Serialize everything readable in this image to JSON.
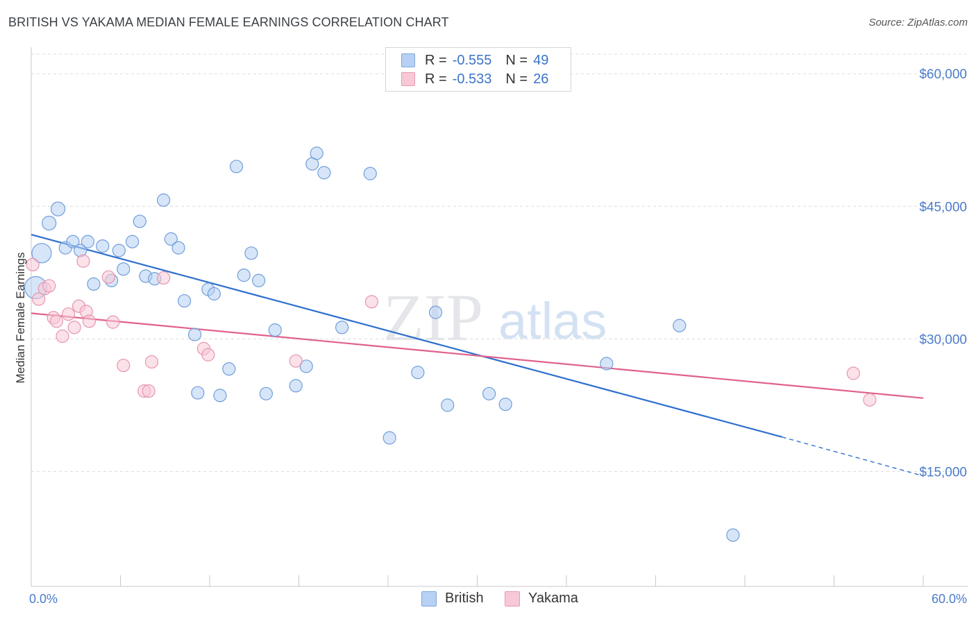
{
  "title": "BRITISH VS YAKAMA MEDIAN FEMALE EARNINGS CORRELATION CHART",
  "source": "Source: ZipAtlas.com",
  "watermark": {
    "zip": "ZIP",
    "atlas": "atlas"
  },
  "legend": {
    "rows": [
      {
        "r_label": "R =",
        "r_value": "-0.555",
        "n_label": "N =",
        "n_value": "49"
      },
      {
        "r_label": "R =",
        "r_value": "-0.533",
        "n_label": "N =",
        "n_value": "26"
      }
    ]
  },
  "colors": {
    "british_fill": "#b7d0f3",
    "british_stroke": "#6f9edb",
    "british_line": "#2f6fce",
    "yakama_fill": "#f8c8d6",
    "yakama_stroke": "#e695b0",
    "yakama_line": "#e0608a",
    "tick_text": "#4a7cc9",
    "grid": "#dcdcdc"
  },
  "chart_data": {
    "type": "scatter",
    "title": "BRITISH VS YAKAMA MEDIAN FEMALE EARNINGS CORRELATION CHART",
    "xlabel": "",
    "ylabel": "Median Female Earnings",
    "xlim": [
      0,
      60
    ],
    "ylim": [
      2000,
      63000
    ],
    "x_tick_labels": [
      "0.0%",
      "60.0%"
    ],
    "y_ticks": [
      15000,
      30000,
      45000,
      60000
    ],
    "y_tick_labels": [
      "$15,000",
      "$30,000",
      "$45,000",
      "$60,000"
    ],
    "grid": true,
    "legend_position": "top-center",
    "series": [
      {
        "name": "British",
        "r": -0.555,
        "n": 49,
        "trend": {
          "x0": 0,
          "y0": 41800,
          "x1": 50.5,
          "y1": 18900,
          "dash_x1": 60,
          "dash_y1": 14500
        },
        "points": [
          {
            "x": 0.3,
            "y": 35800,
            "s": 16
          },
          {
            "x": 0.7,
            "y": 39700,
            "s": 14
          },
          {
            "x": 1.2,
            "y": 43100,
            "s": 10
          },
          {
            "x": 1.8,
            "y": 44700,
            "s": 10
          },
          {
            "x": 2.3,
            "y": 40300,
            "s": 9
          },
          {
            "x": 2.8,
            "y": 41000,
            "s": 9
          },
          {
            "x": 3.3,
            "y": 40000,
            "s": 9
          },
          {
            "x": 3.8,
            "y": 41000,
            "s": 9
          },
          {
            "x": 4.2,
            "y": 36200,
            "s": 9
          },
          {
            "x": 4.8,
            "y": 40500,
            "s": 9
          },
          {
            "x": 5.4,
            "y": 36600,
            "s": 9
          },
          {
            "x": 5.9,
            "y": 40000,
            "s": 9
          },
          {
            "x": 6.2,
            "y": 37900,
            "s": 9
          },
          {
            "x": 6.8,
            "y": 41000,
            "s": 9
          },
          {
            "x": 7.3,
            "y": 43300,
            "s": 9
          },
          {
            "x": 7.7,
            "y": 37100,
            "s": 9
          },
          {
            "x": 8.3,
            "y": 36800,
            "s": 9
          },
          {
            "x": 8.9,
            "y": 45700,
            "s": 9
          },
          {
            "x": 9.4,
            "y": 41300,
            "s": 9
          },
          {
            "x": 9.9,
            "y": 40300,
            "s": 9
          },
          {
            "x": 10.3,
            "y": 34300,
            "s": 9
          },
          {
            "x": 11.0,
            "y": 30500,
            "s": 9
          },
          {
            "x": 11.2,
            "y": 23900,
            "s": 9
          },
          {
            "x": 11.9,
            "y": 35600,
            "s": 9
          },
          {
            "x": 12.3,
            "y": 35100,
            "s": 9
          },
          {
            "x": 12.7,
            "y": 23600,
            "s": 9
          },
          {
            "x": 13.3,
            "y": 26600,
            "s": 9
          },
          {
            "x": 13.8,
            "y": 49500,
            "s": 9
          },
          {
            "x": 14.3,
            "y": 37200,
            "s": 9
          },
          {
            "x": 14.8,
            "y": 39700,
            "s": 9
          },
          {
            "x": 15.3,
            "y": 36600,
            "s": 9
          },
          {
            "x": 15.8,
            "y": 23800,
            "s": 9
          },
          {
            "x": 16.4,
            "y": 31000,
            "s": 9
          },
          {
            "x": 17.8,
            "y": 24700,
            "s": 9
          },
          {
            "x": 18.5,
            "y": 26900,
            "s": 9
          },
          {
            "x": 18.9,
            "y": 49800,
            "s": 9
          },
          {
            "x": 19.2,
            "y": 51000,
            "s": 9
          },
          {
            "x": 19.7,
            "y": 48800,
            "s": 9
          },
          {
            "x": 20.9,
            "y": 31300,
            "s": 9
          },
          {
            "x": 22.8,
            "y": 48700,
            "s": 9
          },
          {
            "x": 24.1,
            "y": 18800,
            "s": 9
          },
          {
            "x": 26.0,
            "y": 26200,
            "s": 9
          },
          {
            "x": 27.2,
            "y": 33000,
            "s": 9
          },
          {
            "x": 28.0,
            "y": 22500,
            "s": 9
          },
          {
            "x": 30.8,
            "y": 23800,
            "s": 9
          },
          {
            "x": 31.9,
            "y": 22600,
            "s": 9
          },
          {
            "x": 38.7,
            "y": 27200,
            "s": 9
          },
          {
            "x": 43.6,
            "y": 31500,
            "s": 9
          },
          {
            "x": 47.2,
            "y": 7800,
            "s": 9
          }
        ]
      },
      {
        "name": "Yakama",
        "r": -0.533,
        "n": 26,
        "trend": {
          "x0": 0,
          "y0": 32900,
          "x1": 60,
          "y1": 23300
        },
        "points": [
          {
            "x": 0.1,
            "y": 38400,
            "s": 9
          },
          {
            "x": 0.5,
            "y": 34500,
            "s": 9
          },
          {
            "x": 0.9,
            "y": 35700,
            "s": 9
          },
          {
            "x": 1.2,
            "y": 36000,
            "s": 9
          },
          {
            "x": 1.5,
            "y": 32400,
            "s": 9
          },
          {
            "x": 1.7,
            "y": 32000,
            "s": 9
          },
          {
            "x": 2.1,
            "y": 30300,
            "s": 9
          },
          {
            "x": 2.5,
            "y": 32800,
            "s": 9
          },
          {
            "x": 2.9,
            "y": 31300,
            "s": 9
          },
          {
            "x": 3.2,
            "y": 33700,
            "s": 9
          },
          {
            "x": 3.5,
            "y": 38800,
            "s": 9
          },
          {
            "x": 3.7,
            "y": 33100,
            "s": 9
          },
          {
            "x": 3.9,
            "y": 32000,
            "s": 9
          },
          {
            "x": 5.2,
            "y": 37000,
            "s": 9
          },
          {
            "x": 5.5,
            "y": 31900,
            "s": 9
          },
          {
            "x": 6.2,
            "y": 27000,
            "s": 9
          },
          {
            "x": 7.6,
            "y": 24100,
            "s": 9
          },
          {
            "x": 7.9,
            "y": 24100,
            "s": 9
          },
          {
            "x": 8.1,
            "y": 27400,
            "s": 9
          },
          {
            "x": 8.9,
            "y": 36900,
            "s": 9
          },
          {
            "x": 11.6,
            "y": 28900,
            "s": 9
          },
          {
            "x": 11.9,
            "y": 28200,
            "s": 9
          },
          {
            "x": 17.8,
            "y": 27500,
            "s": 9
          },
          {
            "x": 22.9,
            "y": 34200,
            "s": 9
          },
          {
            "x": 55.3,
            "y": 26100,
            "s": 9
          },
          {
            "x": 56.4,
            "y": 23100,
            "s": 9
          }
        ]
      }
    ]
  }
}
